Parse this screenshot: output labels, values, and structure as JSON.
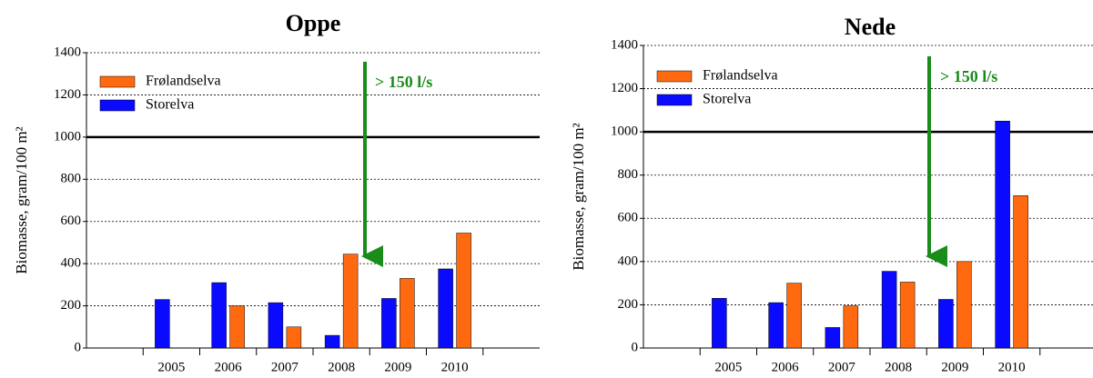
{
  "chart_data": [
    {
      "type": "bar",
      "title": "Oppe",
      "y_label": "Biomasse, gram/100 m²",
      "categories": [
        null,
        "2005",
        "2006",
        "2007",
        "2008",
        "2009",
        "2010",
        null
      ],
      "series": [
        {
          "name": "Frølandselva",
          "color": "#ff6a10",
          "values": [
            null,
            null,
            200,
            100,
            445,
            330,
            545,
            null
          ]
        },
        {
          "name": "Storelva",
          "color": "#0a0aff",
          "values": [
            null,
            230,
            310,
            215,
            60,
            235,
            375,
            null
          ]
        }
      ],
      "ylim": [
        0,
        1400
      ],
      "yticks": [
        0,
        200,
        400,
        600,
        800,
        1000,
        1200,
        1400
      ],
      "grid": true,
      "reference_line": 1000,
      "annotation": "> 150 l/s",
      "legend": "upper left"
    },
    {
      "type": "bar",
      "title": "Nede",
      "y_label": "Biomasse, gram/100 m²",
      "categories": [
        null,
        "2005",
        "2006",
        "2007",
        "2008",
        "2009",
        "2010",
        null
      ],
      "series": [
        {
          "name": "Frølandselva",
          "color": "#ff6a10",
          "values": [
            null,
            null,
            300,
            195,
            305,
            400,
            705,
            null
          ]
        },
        {
          "name": "Storelva",
          "color": "#0a0aff",
          "values": [
            null,
            230,
            210,
            95,
            355,
            225,
            1050,
            null
          ]
        }
      ],
      "ylim": [
        0,
        1400
      ],
      "yticks": [
        0,
        200,
        400,
        600,
        800,
        1000,
        1200,
        1400
      ],
      "grid": true,
      "reference_line": 1000,
      "annotation": "> 150 l/s",
      "legend": "upper left"
    }
  ]
}
